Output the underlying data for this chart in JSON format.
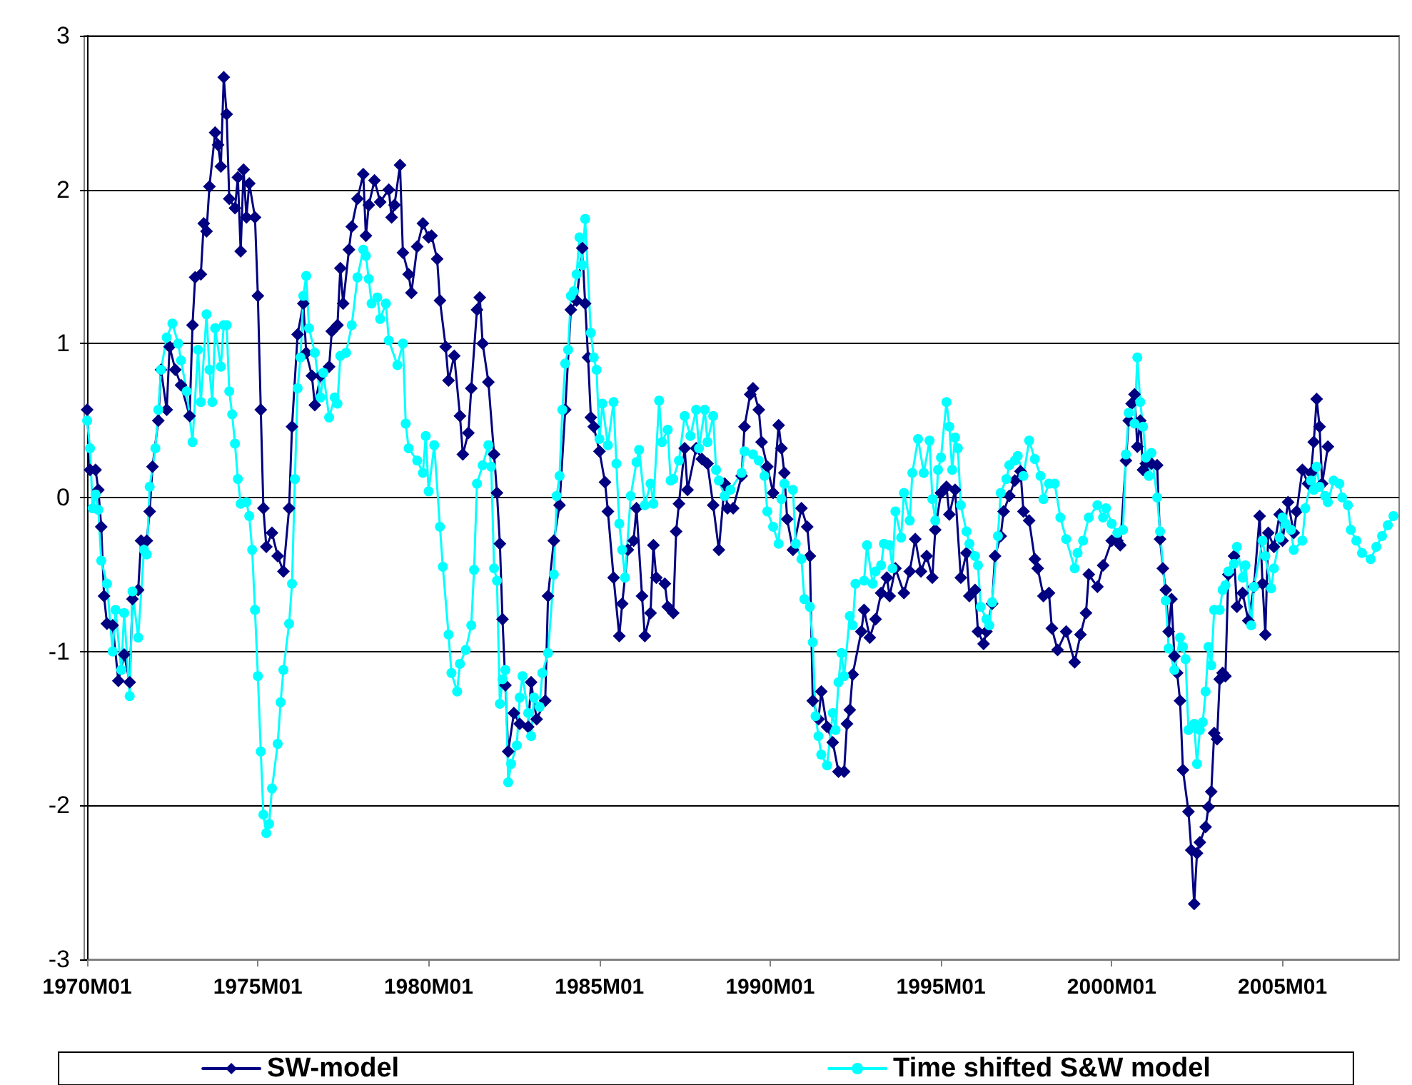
{
  "chart_data": {
    "type": "line",
    "ylim": [
      -3,
      3
    ],
    "yticks": [
      -3,
      -2,
      -1,
      0,
      1,
      2,
      3
    ],
    "xlim": [
      "1969-12",
      "2008-06"
    ],
    "xticks": [
      {
        "value": "1970-01",
        "label": "1970M01"
      },
      {
        "value": "1975-01",
        "label": "1975M01"
      },
      {
        "value": "1980-01",
        "label": "1980M01"
      },
      {
        "value": "1985-01",
        "label": "1985M01"
      },
      {
        "value": "1990-01",
        "label": "1990M01"
      },
      {
        "value": "1995-01",
        "label": "1995M01"
      },
      {
        "value": "2000-01",
        "label": "2000M01"
      },
      {
        "value": "2005-01",
        "label": "2005M01"
      }
    ],
    "grid": "y",
    "legend": "bottom",
    "series": [
      {
        "name": "SW-model",
        "color": "#000080",
        "marker": "diamond",
        "x": [
          "1970-01",
          "1970-02",
          "1970-04",
          "1970-05",
          "1970-06",
          "1970-07",
          "1970-08",
          "1970-10",
          "1970-12",
          "1971-02",
          "1971-04",
          "1971-05",
          "1971-07",
          "1971-08",
          "1971-10",
          "1971-11",
          "1971-12",
          "1972-02",
          "1972-03",
          "1972-05",
          "1972-06",
          "1972-08",
          "1972-10",
          "1973-01",
          "1973-02",
          "1973-03",
          "1973-05",
          "1973-06",
          "1973-07",
          "1973-08",
          "1973-10",
          "1973-11",
          "1973-12",
          "1974-01",
          "1974-02",
          "1974-03",
          "1974-05",
          "1974-06",
          "1974-07",
          "1974-08",
          "1974-09",
          "1974-10",
          "1974-12",
          "1975-01",
          "1975-02",
          "1975-03",
          "1975-04",
          "1975-06",
          "1975-08",
          "1975-10",
          "1975-12",
          "1976-01",
          "1976-03",
          "1976-05",
          "1976-06",
          "1976-08",
          "1976-09",
          "1976-11",
          "1977-02",
          "1977-03",
          "1977-05",
          "1977-06",
          "1977-07",
          "1977-09",
          "1977-10",
          "1977-12",
          "1978-02",
          "1978-03",
          "1978-04",
          "1978-06",
          "1978-08",
          "1978-11",
          "1978-12",
          "1979-01",
          "1979-03",
          "1979-04",
          "1979-06",
          "1979-07",
          "1979-09",
          "1979-11",
          "1980-01",
          "1980-02",
          "1980-04",
          "1980-05",
          "1980-07",
          "1980-08",
          "1980-10",
          "1980-12",
          "1981-01",
          "1981-03",
          "1981-04",
          "1981-06",
          "1981-07",
          "1981-08",
          "1981-10",
          "1981-12",
          "1982-01",
          "1982-02",
          "1982-03",
          "1982-04",
          "1982-05",
          "1982-07",
          "1982-09",
          "1982-12",
          "1983-01",
          "1983-03",
          "1983-06",
          "1983-07",
          "1983-09",
          "1983-11",
          "1984-01",
          "1984-03",
          "1984-05",
          "1984-07",
          "1984-08",
          "1984-09",
          "1984-10",
          "1984-11",
          "1985-01",
          "1985-03",
          "1985-04",
          "1985-06",
          "1985-08",
          "1985-09",
          "1985-11",
          "1986-01",
          "1986-02",
          "1986-04",
          "1986-05",
          "1986-07",
          "1986-08",
          "1986-09",
          "1986-12",
          "1987-01",
          "1987-03",
          "1987-04",
          "1987-05",
          "1987-07",
          "1987-08",
          "1987-11",
          "1988-01",
          "1988-03",
          "1988-05",
          "1988-07",
          "1988-09",
          "1988-10",
          "1988-12",
          "1989-03",
          "1989-04",
          "1989-06",
          "1989-07",
          "1989-09",
          "1989-10",
          "1989-12",
          "1990-02",
          "1990-04",
          "1990-05",
          "1990-06",
          "1990-07",
          "1990-09",
          "1990-12",
          "1991-02",
          "1991-03",
          "1991-04",
          "1991-06",
          "1991-07",
          "1991-09",
          "1991-11",
          "1992-01",
          "1992-03",
          "1992-04",
          "1992-05",
          "1992-06",
          "1992-09",
          "1992-10",
          "1992-12",
          "1993-02",
          "1993-04",
          "1993-06",
          "1993-07",
          "1993-09",
          "1993-12",
          "1994-02",
          "1994-04",
          "1994-06",
          "1994-08",
          "1994-10",
          "1994-11",
          "1995-01",
          "1995-03",
          "1995-04",
          "1995-06",
          "1995-08",
          "1995-10",
          "1995-11",
          "1996-01",
          "1996-02",
          "1996-04",
          "1996-05",
          "1996-07",
          "1996-08",
          "1996-10",
          "1996-11",
          "1997-01",
          "1997-03",
          "1997-05",
          "1997-06",
          "1997-08",
          "1997-10",
          "1997-11",
          "1998-01",
          "1998-03",
          "1998-04",
          "1998-06",
          "1998-09",
          "1998-12",
          "1999-02",
          "1999-04",
          "1999-05",
          "1999-08",
          "1999-10",
          "2000-01",
          "2000-03",
          "2000-04",
          "2000-06",
          "2000-07",
          "2000-08",
          "2000-09",
          "2000-10",
          "2000-11",
          "2000-12",
          "2001-01",
          "2001-03",
          "2001-05",
          "2001-06",
          "2001-07",
          "2001-08",
          "2001-09",
          "2001-10",
          "2001-11",
          "2001-12",
          "2002-01",
          "2002-02",
          "2002-04",
          "2002-05",
          "2002-06",
          "2002-07",
          "2002-08",
          "2002-10",
          "2002-11",
          "2002-12",
          "2003-01",
          "2003-02",
          "2003-03",
          "2003-04",
          "2003-05",
          "2003-06",
          "2003-08",
          "2003-09",
          "2003-11",
          "2004-01",
          "2004-03",
          "2004-05",
          "2004-06",
          "2004-07",
          "2004-08",
          "2004-10",
          "2004-12",
          "2005-01",
          "2005-03",
          "2005-05",
          "2005-06",
          "2005-08",
          "2005-10",
          "2005-11",
          "2005-12",
          "2006-01",
          "2006-02",
          "2006-03",
          "2006-05"
        ],
        "values": [
          0.57,
          0.18,
          0.18,
          0.05,
          -0.19,
          -0.64,
          -0.82,
          -0.83,
          -1.19,
          -1.02,
          -1.2,
          -0.66,
          -0.6,
          -0.28,
          -0.28,
          -0.09,
          0.2,
          0.5,
          0.83,
          0.57,
          0.98,
          0.83,
          0.73,
          0.53,
          1.12,
          1.43,
          1.45,
          1.78,
          1.73,
          2.02,
          2.37,
          2.29,
          2.15,
          2.73,
          2.49,
          1.94,
          1.88,
          2.08,
          1.6,
          2.13,
          1.82,
          2.04,
          1.82,
          1.31,
          0.57,
          -0.07,
          -0.32,
          -0.23,
          -0.38,
          -0.48,
          -0.07,
          0.46,
          1.06,
          1.26,
          0.94,
          0.79,
          0.6,
          0.79,
          0.85,
          1.08,
          1.12,
          1.49,
          1.26,
          1.61,
          1.76,
          1.94,
          2.1,
          1.7,
          1.9,
          2.06,
          1.92,
          2.0,
          1.82,
          1.9,
          2.16,
          1.59,
          1.45,
          1.33,
          1.63,
          1.78,
          1.69,
          1.7,
          1.55,
          1.28,
          0.98,
          0.76,
          0.92,
          0.53,
          0.28,
          0.42,
          0.71,
          1.22,
          1.3,
          1.0,
          0.75,
          0.28,
          0.03,
          -0.3,
          -0.79,
          -1.22,
          -1.65,
          -1.4,
          -1.47,
          -1.49,
          -1.2,
          -1.44,
          -1.32,
          -0.64,
          -0.28,
          -0.05,
          0.57,
          1.22,
          1.28,
          1.62,
          1.26,
          0.91,
          0.52,
          0.46,
          0.3,
          0.1,
          -0.09,
          -0.52,
          -0.9,
          -0.69,
          -0.34,
          -0.28,
          -0.07,
          -0.64,
          -0.9,
          -0.75,
          -0.31,
          -0.52,
          -0.56,
          -0.71,
          -0.75,
          -0.22,
          -0.04,
          0.32,
          0.05,
          0.32,
          0.25,
          0.22,
          -0.05,
          -0.34,
          0.09,
          -0.07,
          -0.07,
          0.14,
          0.46,
          0.67,
          0.71,
          0.57,
          0.36,
          0.2,
          0.03,
          0.47,
          0.32,
          0.16,
          -0.14,
          -0.34,
          -0.07,
          -0.19,
          -0.38,
          -1.32,
          -1.44,
          -1.26,
          -1.49,
          -1.59,
          -1.78,
          -1.78,
          -1.47,
          -1.38,
          -1.15,
          -0.87,
          -0.73,
          -0.91,
          -0.79,
          -0.62,
          -0.52,
          -0.64,
          -0.46,
          -0.62,
          -0.48,
          -0.27,
          -0.48,
          -0.38,
          -0.52,
          -0.21,
          0.03,
          0.07,
          -0.11,
          0.05,
          -0.52,
          -0.36,
          -0.64,
          -0.6,
          -0.87,
          -0.95,
          -0.87,
          -0.69,
          -0.38,
          -0.25,
          -0.09,
          0.01,
          0.11,
          0.17,
          -0.09,
          -0.15,
          -0.4,
          -0.46,
          -0.64,
          -0.62,
          -0.85,
          -0.99,
          -0.87,
          -1.07,
          -0.89,
          -0.75,
          -0.5,
          -0.58,
          -0.44,
          -0.28,
          -0.28,
          -0.31,
          0.24,
          0.5,
          0.61,
          0.67,
          0.33,
          0.5,
          0.18,
          0.22,
          0.22,
          0.21,
          -0.27,
          -0.46,
          -0.6,
          -0.87,
          -0.66,
          -1.03,
          -1.14,
          -1.32,
          -1.77,
          -2.04,
          -2.29,
          -2.64,
          -2.31,
          -2.24,
          -2.14,
          -2.01,
          -1.91,
          -1.53,
          -1.57,
          -1.18,
          -1.14,
          -1.16,
          -0.5,
          -0.38,
          -0.71,
          -0.62,
          -0.8,
          -0.58,
          -0.12,
          -0.56,
          -0.89,
          -0.23,
          -0.32,
          -0.11,
          -0.28,
          -0.03,
          -0.23,
          -0.09,
          0.18,
          0.09,
          0.16,
          0.36,
          0.64,
          0.46,
          0.09,
          0.33
        ]
      },
      {
        "name": "Time shifted S&W model",
        "color": "#00ffff",
        "marker": "circle",
        "x": [
          "1970-01",
          "1970-02",
          "1970-03",
          "1970-04",
          "1970-05",
          "1970-06",
          "1970-08",
          "1970-10",
          "1970-11",
          "1971-01",
          "1971-02",
          "1971-04",
          "1971-05",
          "1971-07",
          "1971-09",
          "1971-10",
          "1971-11",
          "1972-01",
          "1972-02",
          "1972-03",
          "1972-05",
          "1972-07",
          "1972-09",
          "1972-10",
          "1972-12",
          "1973-02",
          "1973-04",
          "1973-05",
          "1973-07",
          "1973-08",
          "1973-09",
          "1973-10",
          "1973-12",
          "1974-01",
          "1974-02",
          "1974-03",
          "1974-04",
          "1974-05",
          "1974-06",
          "1974-07",
          "1974-09",
          "1974-10",
          "1974-11",
          "1974-12",
          "1975-01",
          "1975-02",
          "1975-03",
          "1975-04",
          "1975-05",
          "1975-06",
          "1975-08",
          "1975-09",
          "1975-10",
          "1975-12",
          "1976-01",
          "1976-02",
          "1976-03",
          "1976-04",
          "1976-05",
          "1976-06",
          "1976-07",
          "1976-09",
          "1976-11",
          "1976-12",
          "1977-02",
          "1977-04",
          "1977-05",
          "1977-06",
          "1977-08",
          "1977-10",
          "1977-12",
          "1978-02",
          "1978-03",
          "1978-04",
          "1978-05",
          "1978-07",
          "1978-08",
          "1978-10",
          "1978-11",
          "1979-02",
          "1979-04",
          "1979-05",
          "1979-06",
          "1979-09",
          "1979-11",
          "1979-12",
          "1980-01",
          "1980-03",
          "1980-05",
          "1980-06",
          "1980-08",
          "1980-09",
          "1980-11",
          "1980-12",
          "1981-02",
          "1981-04",
          "1981-05",
          "1981-06",
          "1981-08",
          "1981-10",
          "1981-11",
          "1981-12",
          "1982-01",
          "1982-02",
          "1982-03",
          "1982-04",
          "1982-05",
          "1982-06",
          "1982-08",
          "1982-09",
          "1982-10",
          "1982-12",
          "1983-01",
          "1983-02",
          "1983-04",
          "1983-05",
          "1983-07",
          "1983-09",
          "1983-10",
          "1983-11",
          "1983-12",
          "1984-01",
          "1984-02",
          "1984-03",
          "1984-04",
          "1984-05",
          "1984-06",
          "1984-07",
          "1984-08",
          "1984-10",
          "1984-11",
          "1984-12",
          "1985-01",
          "1985-02",
          "1985-04",
          "1985-06",
          "1985-07",
          "1985-08",
          "1985-09",
          "1985-10",
          "1985-12",
          "1986-02",
          "1986-03",
          "1986-05",
          "1986-07",
          "1986-08",
          "1986-10",
          "1986-11",
          "1987-01",
          "1987-02",
          "1987-03",
          "1987-05",
          "1987-07",
          "1987-09",
          "1987-11",
          "1987-12",
          "1988-02",
          "1988-03",
          "1988-05",
          "1988-06",
          "1988-07",
          "1988-09",
          "1988-11",
          "1989-03",
          "1989-04",
          "1989-07",
          "1989-09",
          "1989-11",
          "1989-12",
          "1990-02",
          "1990-04",
          "1990-05",
          "1990-06",
          "1990-09",
          "1990-10",
          "1990-12",
          "1991-01",
          "1991-03",
          "1991-04",
          "1991-05",
          "1991-06",
          "1991-07",
          "1991-09",
          "1991-11",
          "1991-12",
          "1992-01",
          "1992-02",
          "1992-03",
          "1992-05",
          "1992-06",
          "1992-07",
          "1992-10",
          "1992-11",
          "1993-01",
          "1993-02",
          "1993-04",
          "1993-05",
          "1993-07",
          "1993-08",
          "1993-09",
          "1993-11",
          "1993-12",
          "1994-02",
          "1994-03",
          "1994-05",
          "1994-07",
          "1994-09",
          "1994-10",
          "1994-11",
          "1994-12",
          "1995-01",
          "1995-03",
          "1995-04",
          "1995-05",
          "1995-06",
          "1995-07",
          "1995-08",
          "1995-10",
          "1995-11",
          "1996-01",
          "1996-02",
          "1996-03",
          "1996-05",
          "1996-06",
          "1996-07",
          "1996-09",
          "1996-10",
          "1996-12",
          "1997-01",
          "1997-03",
          "1997-04",
          "1997-06",
          "1997-08",
          "1997-10",
          "1997-12",
          "1998-01",
          "1998-03",
          "1998-05",
          "1998-07",
          "1998-09",
          "1998-12",
          "1999-01",
          "1999-03",
          "1999-05",
          "1999-08",
          "1999-10",
          "1999-11",
          "2000-01",
          "2000-03",
          "2000-05",
          "2000-06",
          "2000-07",
          "2000-09",
          "2000-10",
          "2000-11",
          "2000-12",
          "2001-01",
          "2001-02",
          "2001-03",
          "2001-05",
          "2001-06",
          "2001-08",
          "2001-09",
          "2001-11",
          "2002-01",
          "2002-02",
          "2002-03",
          "2002-04",
          "2002-06",
          "2002-07",
          "2002-08",
          "2002-09",
          "2002-10",
          "2002-11",
          "2002-12",
          "2003-01",
          "2003-03",
          "2003-04",
          "2003-05",
          "2003-06",
          "2003-08",
          "2003-09",
          "2003-11",
          "2003-12",
          "2004-02",
          "2004-03",
          "2004-06",
          "2004-07",
          "2004-09",
          "2004-10",
          "2004-12",
          "2005-01",
          "2005-02",
          "2005-04",
          "2005-05",
          "2005-08",
          "2005-09",
          "2005-11",
          "2005-12",
          "2006-01",
          "2006-02",
          "2006-04",
          "2006-05",
          "2006-07",
          "2006-09",
          "2006-10",
          "2006-12",
          "2007-01",
          "2007-03",
          "2007-05",
          "2007-08",
          "2007-10",
          "2007-12",
          "2008-02",
          "2008-04"
        ],
        "values": [
          0.5,
          0.32,
          -0.07,
          0.02,
          -0.08,
          -0.41,
          -0.56,
          -1.0,
          -0.73,
          -1.12,
          -0.75,
          -1.29,
          -0.61,
          -0.91,
          -0.34,
          -0.37,
          0.07,
          0.32,
          0.57,
          0.83,
          1.04,
          1.13,
          1.0,
          0.89,
          0.69,
          0.36,
          0.96,
          0.62,
          1.19,
          0.83,
          0.62,
          1.1,
          0.85,
          1.12,
          1.12,
          0.69,
          0.54,
          0.35,
          0.12,
          -0.04,
          -0.03,
          -0.12,
          -0.34,
          -0.73,
          -1.16,
          -1.65,
          -2.06,
          -2.18,
          -2.12,
          -1.89,
          -1.6,
          -1.33,
          -1.12,
          -0.82,
          -0.56,
          0.12,
          0.71,
          0.91,
          1.31,
          1.44,
          1.1,
          0.94,
          0.65,
          0.81,
          0.52,
          0.65,
          0.61,
          0.92,
          0.94,
          1.12,
          1.43,
          1.61,
          1.57,
          1.42,
          1.26,
          1.3,
          1.16,
          1.26,
          1.02,
          0.86,
          1.0,
          0.48,
          0.32,
          0.24,
          0.16,
          0.4,
          0.04,
          0.34,
          -0.19,
          -0.45,
          -0.89,
          -1.14,
          -1.26,
          -1.08,
          -0.99,
          -0.83,
          -0.47,
          0.09,
          0.21,
          0.34,
          0.2,
          -0.46,
          -0.54,
          -1.34,
          -1.18,
          -1.12,
          -1.85,
          -1.73,
          -1.61,
          -1.3,
          -1.16,
          -1.4,
          -1.55,
          -1.3,
          -1.36,
          -1.14,
          -1.01,
          -0.5,
          0.01,
          0.14,
          0.57,
          0.87,
          0.96,
          1.31,
          1.34,
          1.45,
          1.69,
          1.51,
          1.81,
          1.07,
          0.91,
          0.83,
          0.38,
          0.61,
          0.34,
          0.62,
          0.22,
          -0.17,
          -0.34,
          -0.52,
          0.01,
          0.23,
          0.31,
          -0.05,
          0.09,
          -0.04,
          0.63,
          0.36,
          0.44,
          0.11,
          0.12,
          0.24,
          0.53,
          0.4,
          0.57,
          0.32,
          0.57,
          0.36,
          0.53,
          0.18,
          0.11,
          0.01,
          0.05,
          0.16,
          0.3,
          0.28,
          0.24,
          0.14,
          -0.09,
          -0.19,
          -0.3,
          -0.01,
          0.09,
          0.05,
          -0.3,
          -0.4,
          -0.66,
          -0.71,
          -0.94,
          -1.42,
          -1.55,
          -1.67,
          -1.74,
          -1.4,
          -1.51,
          -1.2,
          -1.01,
          -1.16,
          -0.77,
          -0.83,
          -0.56,
          -0.54,
          -0.31,
          -0.56,
          -0.48,
          -0.44,
          -0.3,
          -0.31,
          -0.46,
          -0.09,
          -0.26,
          0.03,
          -0.15,
          0.16,
          0.38,
          0.16,
          0.37,
          -0.01,
          -0.15,
          0.18,
          0.26,
          0.62,
          0.46,
          0.18,
          0.39,
          0.32,
          -0.05,
          -0.22,
          -0.3,
          -0.38,
          -0.44,
          -0.71,
          -0.79,
          -0.83,
          -0.68,
          -0.25,
          0.03,
          0.12,
          0.21,
          0.24,
          0.27,
          0.14,
          0.37,
          0.25,
          0.14,
          -0.01,
          0.09,
          0.09,
          -0.13,
          -0.27,
          -0.46,
          -0.36,
          -0.28,
          -0.13,
          -0.05,
          -0.13,
          -0.07,
          -0.17,
          -0.23,
          -0.21,
          0.28,
          0.55,
          0.48,
          0.91,
          0.62,
          0.46,
          0.26,
          0.14,
          0.29,
          0.0,
          -0.22,
          -0.67,
          -0.98,
          -1.12,
          -0.91,
          -0.97,
          -1.05,
          -1.51,
          -1.47,
          -1.73,
          -1.51,
          -1.46,
          -1.26,
          -0.97,
          -1.09,
          -0.73,
          -0.73,
          -0.6,
          -0.57,
          -0.48,
          -0.43,
          -0.32,
          -0.52,
          -0.44,
          -0.83,
          -0.58,
          -0.28,
          -0.38,
          -0.59,
          -0.46,
          -0.26,
          -0.13,
          -0.17,
          -0.21,
          -0.34,
          -0.28,
          -0.07,
          0.11,
          0.05,
          0.2,
          0.07,
          0.01,
          -0.03,
          0.11,
          0.09,
          0.0,
          -0.05,
          -0.21,
          -0.28,
          -0.36,
          -0.4,
          -0.32,
          -0.25,
          -0.18,
          -0.12
        ]
      }
    ]
  }
}
